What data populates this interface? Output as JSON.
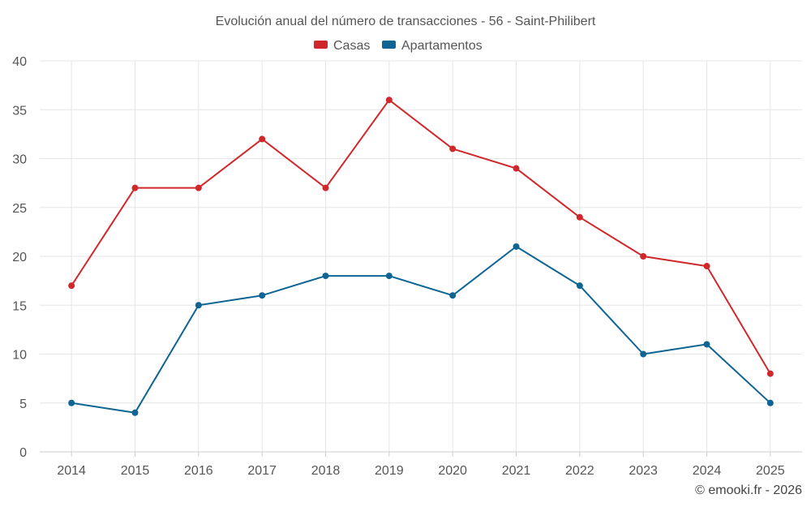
{
  "chart_data": {
    "type": "line",
    "title": "Evolución anual del número de transacciones - 56 - Saint-Philibert",
    "categories": [
      "2014",
      "2015",
      "2016",
      "2017",
      "2018",
      "2019",
      "2020",
      "2021",
      "2022",
      "2023",
      "2024",
      "2025"
    ],
    "series": [
      {
        "name": "Casas",
        "color": "#d0282a",
        "values": [
          17,
          27,
          27,
          32,
          27,
          36,
          31,
          29,
          24,
          20,
          19,
          8
        ]
      },
      {
        "name": "Apartamentos",
        "color": "#0e6594",
        "values": [
          5,
          4,
          15,
          16,
          18,
          18,
          16,
          21,
          17,
          10,
          11,
          5
        ]
      }
    ],
    "ylim": [
      0,
      40
    ],
    "yticks": [
      0,
      5,
      10,
      15,
      20,
      25,
      30,
      35,
      40
    ],
    "grid": true,
    "legend": "top-center",
    "xlabel": "",
    "ylabel": ""
  },
  "credit": "© emooki.fr - 2026"
}
